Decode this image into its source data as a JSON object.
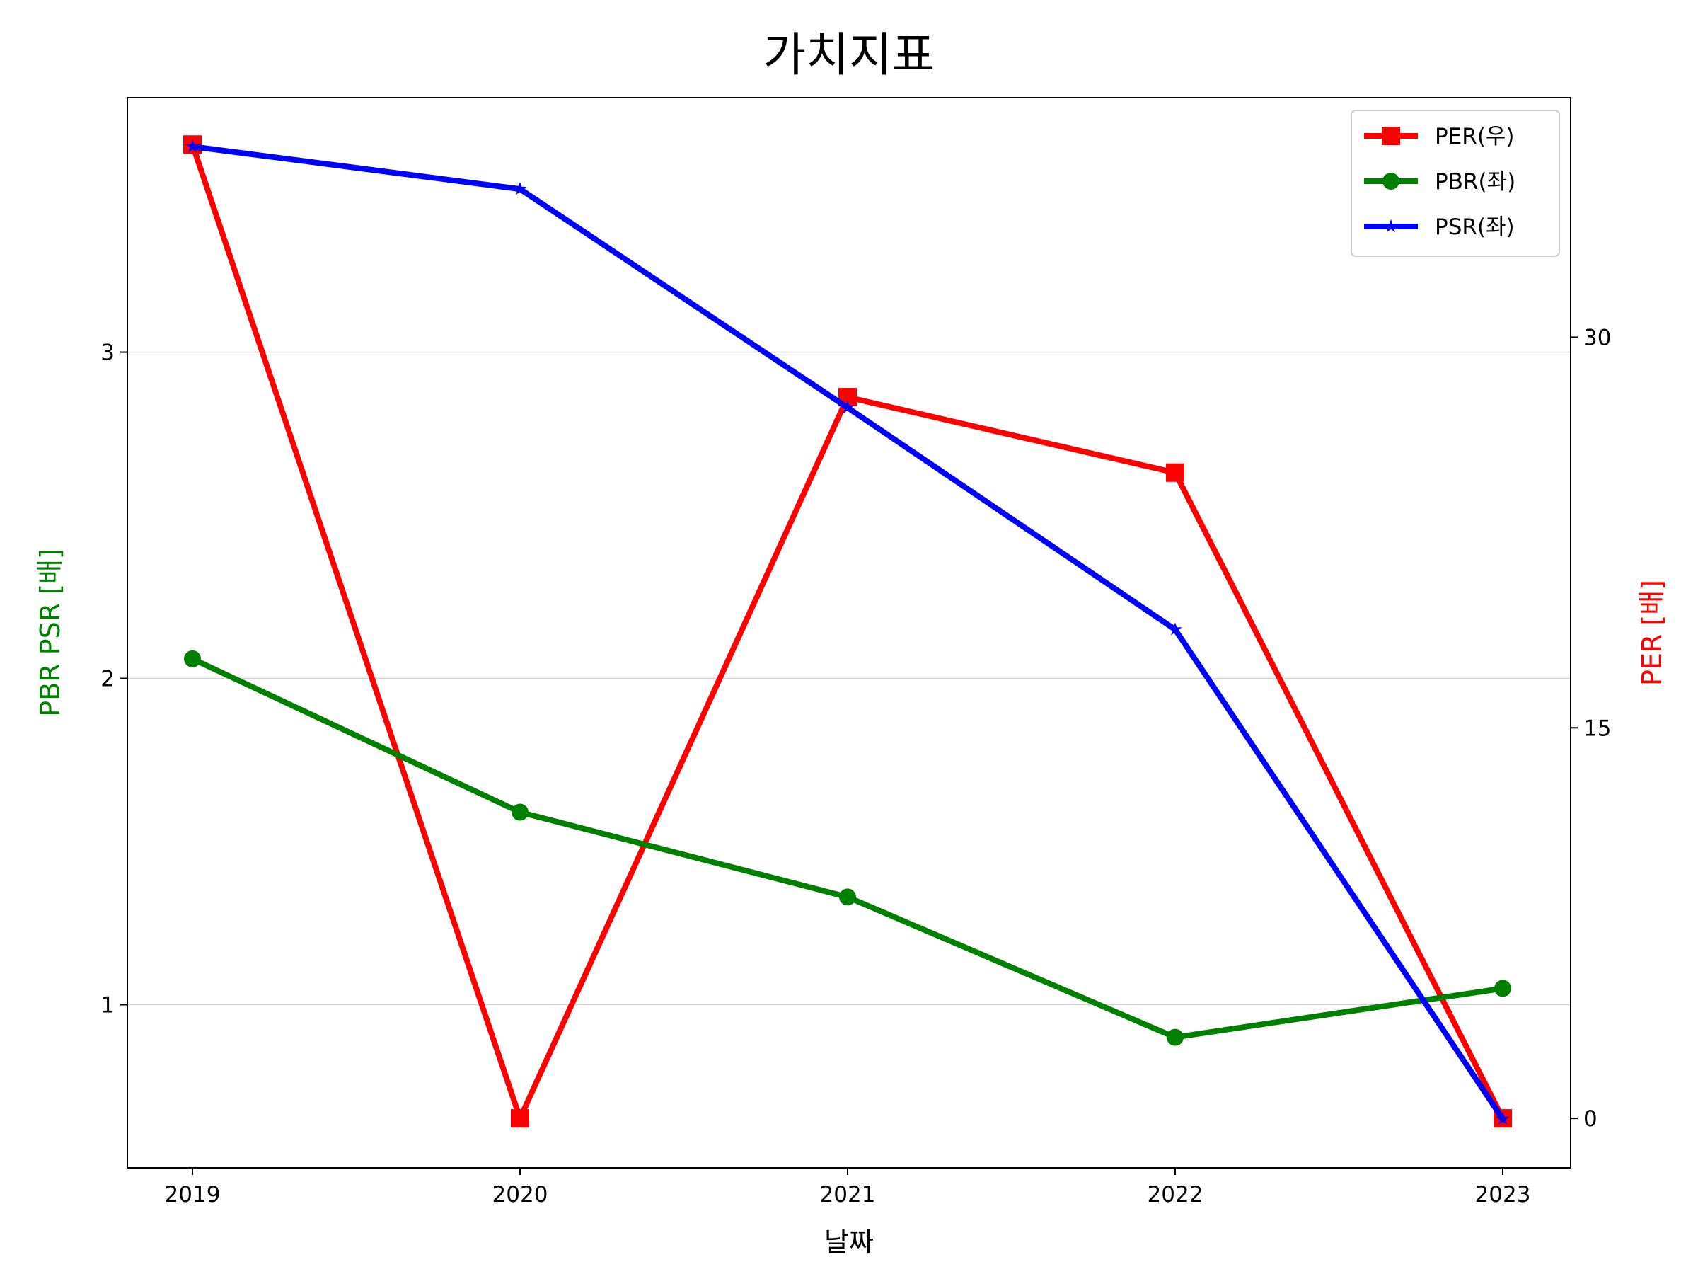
{
  "chart_data": {
    "type": "line",
    "title": "가치지표",
    "xlabel": "날짜",
    "ylabel_left": "PBR PSR [배]",
    "ylabel_right": "PER [배]",
    "categories": [
      "2019",
      "2020",
      "2021",
      "2022",
      "2023"
    ],
    "left_ylim": [
      0.5,
      3.78
    ],
    "right_ylim": [
      -1.9,
      39.2
    ],
    "left_ticks": [
      1,
      2,
      3
    ],
    "right_ticks": [
      0,
      15,
      30
    ],
    "grid": "horizontal-left",
    "legend_position": "top-right",
    "series": [
      {
        "name": "PER(우)",
        "axis": "right",
        "color": "#ff0000",
        "marker": "square",
        "values": [
          37.4,
          0.0,
          27.7,
          24.8,
          0.0
        ]
      },
      {
        "name": "PBR(좌)",
        "axis": "left",
        "color": "#008000",
        "marker": "circle",
        "values": [
          2.06,
          1.59,
          1.33,
          0.9,
          1.05
        ]
      },
      {
        "name": "PSR(좌)",
        "axis": "left",
        "color": "#0000ff",
        "marker": "star",
        "values": [
          3.63,
          3.5,
          2.83,
          2.15,
          0.65
        ]
      }
    ]
  }
}
